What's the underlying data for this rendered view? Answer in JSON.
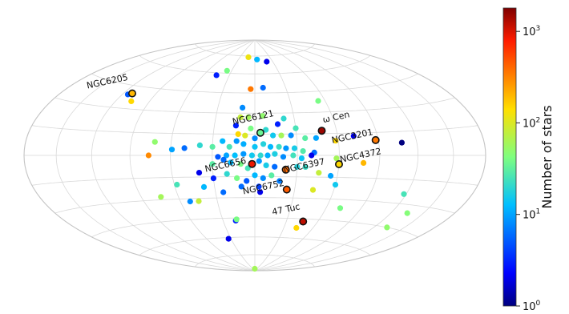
{
  "chart_data": {
    "type": "scatter",
    "projection": "hammer-aitoff",
    "grid": true,
    "colorbar": {
      "label": "Number of stars",
      "scale": "log",
      "range": [
        1,
        1800
      ],
      "colormap": "jet",
      "ticks": [
        {
          "value": 1,
          "base": "10",
          "exp": "0"
        },
        {
          "value": 10,
          "base": "10",
          "exp": "1"
        },
        {
          "value": 100,
          "base": "10",
          "exp": "2"
        },
        {
          "value": 1000,
          "base": "10",
          "exp": "3"
        }
      ]
    },
    "named_clusters": [
      {
        "name": "NGC6205",
        "lon": -112,
        "lat": 40,
        "n_stars": 200
      },
      {
        "name": "NGC6121",
        "lon": 4,
        "lat": 16,
        "n_stars": 35
      },
      {
        "name": "ω Cen",
        "lon": 49,
        "lat": 17,
        "n_stars": 1500
      },
      {
        "name": "NGC3201",
        "lon": 88,
        "lat": 10,
        "n_stars": 350
      },
      {
        "name": "NGC6656",
        "lon": -2,
        "lat": -6,
        "n_stars": 900
      },
      {
        "name": "NGC6397",
        "lon": 22,
        "lat": -10,
        "n_stars": 400
      },
      {
        "name": "NGC4372",
        "lon": 60,
        "lat": -6,
        "n_stars": 150
      },
      {
        "name": "NGC6752",
        "lon": 24,
        "lat": -24,
        "n_stars": 450
      },
      {
        "name": "47 Tuc",
        "lon": 46,
        "lat": -47,
        "n_stars": 1200
      }
    ],
    "points": [
      {
        "lon": -13,
        "lat": 74,
        "n": 120
      },
      {
        "lon": 4,
        "lat": 72,
        "n": 12
      },
      {
        "lon": 20,
        "lat": 70,
        "n": 2
      },
      {
        "lon": -36,
        "lat": 62,
        "n": 40
      },
      {
        "lon": -45,
        "lat": 58,
        "n": 3
      },
      {
        "lon": 8,
        "lat": 49,
        "n": 6
      },
      {
        "lon": -4,
        "lat": 48,
        "n": 350
      },
      {
        "lon": -10,
        "lat": 34,
        "n": 8
      },
      {
        "lon": 54,
        "lat": 38,
        "n": 40
      },
      {
        "lon": -115,
        "lat": 39,
        "n": 5
      },
      {
        "lon": -106,
        "lat": 35,
        "n": 150
      },
      {
        "lon": -11,
        "lat": 27,
        "n": 80
      },
      {
        "lon": -5,
        "lat": 27,
        "n": 60
      },
      {
        "lon": 6,
        "lat": 28,
        "n": 50
      },
      {
        "lon": 22,
        "lat": 26,
        "n": 20
      },
      {
        "lon": 17,
        "lat": 22,
        "n": 3
      },
      {
        "lon": -14,
        "lat": 21,
        "n": 3
      },
      {
        "lon": -12,
        "lat": 15,
        "n": 150
      },
      {
        "lon": -7,
        "lat": 14,
        "n": 100
      },
      {
        "lon": -3,
        "lat": 19,
        "n": 40
      },
      {
        "lon": 0,
        "lat": 12,
        "n": 8
      },
      {
        "lon": 8,
        "lat": 18,
        "n": 20
      },
      {
        "lon": 13,
        "lat": 14,
        "n": 15
      },
      {
        "lon": 19,
        "lat": 14,
        "n": 60
      },
      {
        "lon": 26,
        "lat": 14,
        "n": 8
      },
      {
        "lon": 30,
        "lat": 19,
        "n": 25
      },
      {
        "lon": 36,
        "lat": 12,
        "n": 30
      },
      {
        "lon": 44,
        "lat": 12,
        "n": 10
      },
      {
        "lon": 58,
        "lat": 10,
        "n": 150
      },
      {
        "lon": 72,
        "lat": 13,
        "n": 2
      },
      {
        "lon": 108,
        "lat": 8,
        "n": 1
      },
      {
        "lon": -72,
        "lat": 9,
        "n": 50
      },
      {
        "lon": -59,
        "lat": 4,
        "n": 10
      },
      {
        "lon": -50,
        "lat": 5,
        "n": 6
      },
      {
        "lon": -39,
        "lat": 7,
        "n": 20
      },
      {
        "lon": -30,
        "lat": 6,
        "n": 30
      },
      {
        "lon": -23,
        "lat": 10,
        "n": 12
      },
      {
        "lon": -18,
        "lat": 6,
        "n": 25
      },
      {
        "lon": -13,
        "lat": 10,
        "n": 9
      },
      {
        "lon": -8,
        "lat": 8,
        "n": 11
      },
      {
        "lon": 0,
        "lat": 6,
        "n": 14
      },
      {
        "lon": 6,
        "lat": 8,
        "n": 18
      },
      {
        "lon": 11,
        "lat": 6,
        "n": 12
      },
      {
        "lon": 17,
        "lat": 6,
        "n": 22
      },
      {
        "lon": 22,
        "lat": 5,
        "n": 9
      },
      {
        "lon": 28,
        "lat": 5,
        "n": 16
      },
      {
        "lon": 34,
        "lat": 3,
        "n": 28
      },
      {
        "lon": 42,
        "lat": 2,
        "n": 6
      },
      {
        "lon": -76,
        "lat": 0,
        "n": 300
      },
      {
        "lon": -26,
        "lat": -1,
        "n": 5
      },
      {
        "lon": -20,
        "lat": 0,
        "n": 10
      },
      {
        "lon": -14,
        "lat": 0,
        "n": 13
      },
      {
        "lon": -8,
        "lat": 1,
        "n": 9
      },
      {
        "lon": -2,
        "lat": 0,
        "n": 15
      },
      {
        "lon": 4,
        "lat": 0,
        "n": 20
      },
      {
        "lon": 9,
        "lat": 0,
        "n": 11
      },
      {
        "lon": 14,
        "lat": 1,
        "n": 17
      },
      {
        "lon": 20,
        "lat": -1,
        "n": 8
      },
      {
        "lon": 27,
        "lat": 0,
        "n": 24
      },
      {
        "lon": 33,
        "lat": -2,
        "n": 14
      },
      {
        "lon": 40,
        "lat": 0,
        "n": 2
      },
      {
        "lon": -30,
        "lat": -6,
        "n": 30
      },
      {
        "lon": -22,
        "lat": -3,
        "n": 6
      },
      {
        "lon": -17,
        "lat": -5,
        "n": 12
      },
      {
        "lon": -10,
        "lat": -6,
        "n": 40
      },
      {
        "lon": -5,
        "lat": -9,
        "n": 25
      },
      {
        "lon": 3,
        "lat": -4,
        "n": 9
      },
      {
        "lon": 8,
        "lat": -7,
        "n": 16
      },
      {
        "lon": 14,
        "lat": -8,
        "n": 6
      },
      {
        "lon": 30,
        "lat": -8,
        "n": 18
      },
      {
        "lon": 36,
        "lat": -8,
        "n": 22
      },
      {
        "lon": 46,
        "lat": -12,
        "n": 80
      },
      {
        "lon": 55,
        "lat": -14,
        "n": 10
      },
      {
        "lon": 58,
        "lat": -2,
        "n": 60
      },
      {
        "lon": 78,
        "lat": -5,
        "n": 200
      },
      {
        "lon": -40,
        "lat": -12,
        "n": 2
      },
      {
        "lon": -30,
        "lat": -16,
        "n": 3
      },
      {
        "lon": -20,
        "lat": -13,
        "n": 20
      },
      {
        "lon": -13,
        "lat": -16,
        "n": 40
      },
      {
        "lon": -6,
        "lat": -18,
        "n": 5
      },
      {
        "lon": 0,
        "lat": -14,
        "n": 12
      },
      {
        "lon": 6,
        "lat": -16,
        "n": 8
      },
      {
        "lon": 12,
        "lat": -14,
        "n": 30
      },
      {
        "lon": 18,
        "lat": -18,
        "n": 7
      },
      {
        "lon": 3,
        "lat": -22,
        "n": 4
      },
      {
        "lon": -10,
        "lat": -22,
        "n": 6
      },
      {
        "lon": 4,
        "lat": -26,
        "n": 2
      },
      {
        "lon": -24,
        "lat": -26,
        "n": 6
      },
      {
        "lon": -38,
        "lat": -22,
        "n": 12
      },
      {
        "lon": -58,
        "lat": -20,
        "n": 25
      },
      {
        "lon": -74,
        "lat": -28,
        "n": 60
      },
      {
        "lon": -52,
        "lat": -32,
        "n": 8
      },
      {
        "lon": -45,
        "lat": -32,
        "n": 80
      },
      {
        "lon": 44,
        "lat": -24,
        "n": 100
      },
      {
        "lon": 60,
        "lat": -20,
        "n": 15
      },
      {
        "lon": -18,
        "lat": -47,
        "n": 3
      },
      {
        "lon": -17,
        "lat": -46,
        "n": 40
      },
      {
        "lon": 43,
        "lat": -52,
        "n": 150
      },
      {
        "lon": 72,
        "lat": -36,
        "n": 40
      },
      {
        "lon": 118,
        "lat": -24,
        "n": 25
      },
      {
        "lon": 135,
        "lat": -35,
        "n": 45
      },
      {
        "lon": 133,
        "lat": -45,
        "n": 50
      },
      {
        "lon": -33,
        "lat": -61,
        "n": 2
      },
      {
        "lon": -1,
        "lat": -88,
        "n": 60
      }
    ]
  }
}
